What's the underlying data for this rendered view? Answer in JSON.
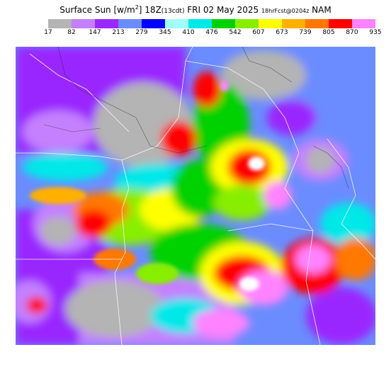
{
  "title": {
    "prefix": "Surface Sun [w/m",
    "sup": "2",
    "time": "] 18Z",
    "local": "(13cdt)",
    "date": " FRI 02 May 2025 ",
    "fcst": "18hrFcst@0204z",
    "model": " NAM"
  },
  "legend": {
    "labels": [
      "17",
      "82",
      "147",
      "213",
      "279",
      "345",
      "410",
      "476",
      "542",
      "607",
      "673",
      "739",
      "805",
      "870",
      "935"
    ],
    "colors": [
      "#b4b4b4",
      "#c480ff",
      "#9a28ff",
      "#6a8cff",
      "#0000ff",
      "#a0ffff",
      "#00e8e8",
      "#00d200",
      "#88ee00",
      "#ffff00",
      "#ffb000",
      "#ff7800",
      "#ff0000",
      "#ff82ff"
    ]
  },
  "map": {
    "description_icon": "weather-forecast-field"
  }
}
